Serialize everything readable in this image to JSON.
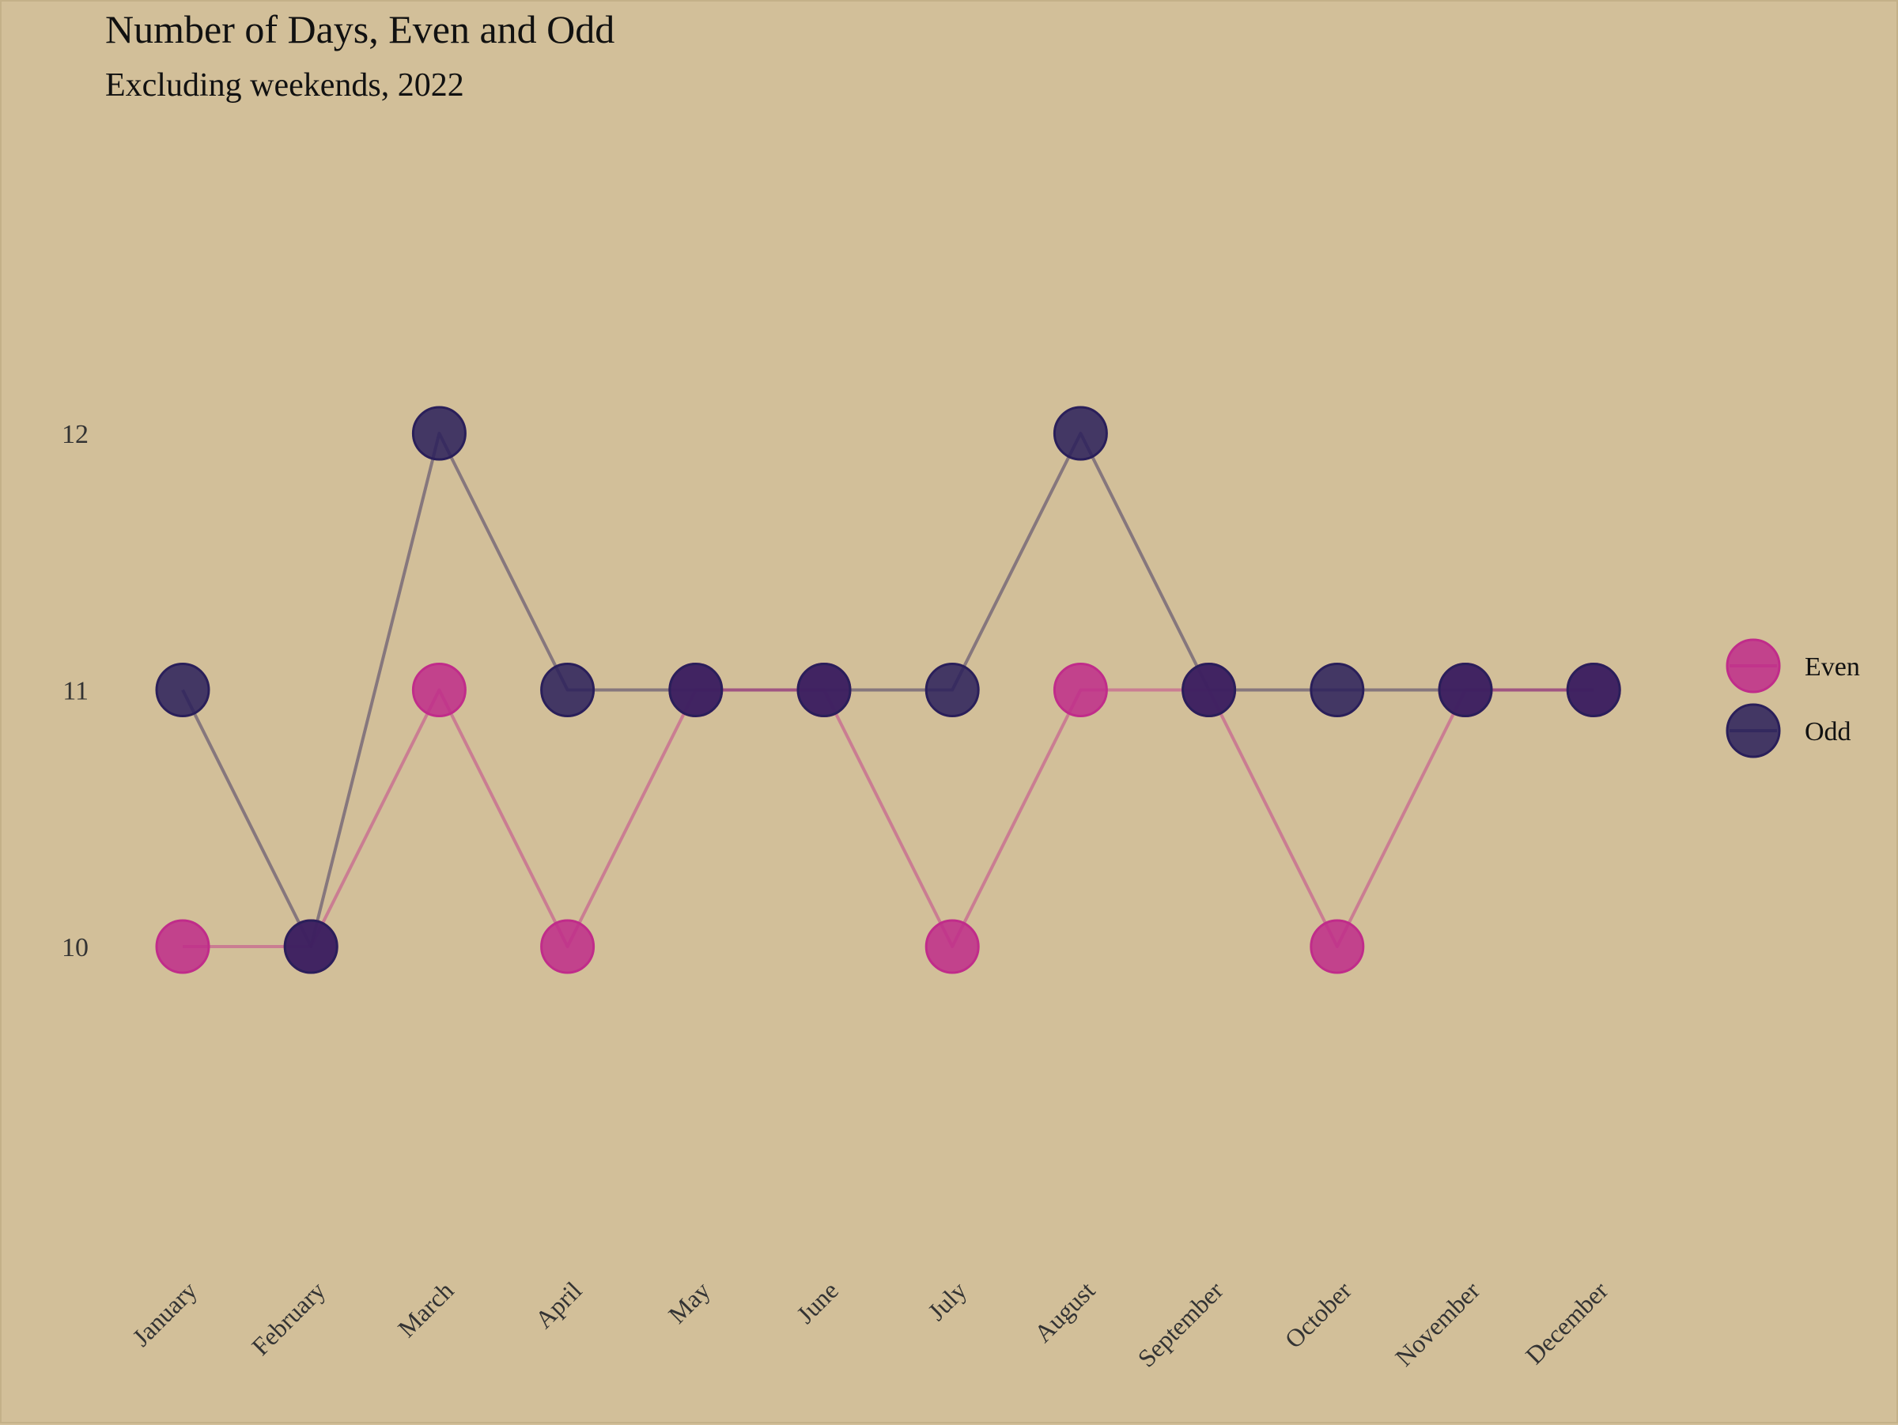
{
  "chart_data": {
    "type": "line",
    "title": "Number of Days, Even and Odd",
    "subtitle": "Excluding weekends, 2022",
    "xlabel": "",
    "ylabel": "",
    "categories": [
      "January",
      "February",
      "March",
      "April",
      "May",
      "June",
      "July",
      "August",
      "September",
      "October",
      "November",
      "December"
    ],
    "y_ticks": [
      10,
      11,
      12
    ],
    "ylim": [
      9,
      13
    ],
    "grid": false,
    "legend_position": "right",
    "series": [
      {
        "name": "Even",
        "color": "#c02c8a",
        "values": [
          10,
          10,
          11,
          10,
          11,
          11,
          10,
          11,
          11,
          10,
          11,
          11
        ]
      },
      {
        "name": "Odd",
        "color": "#2a1f5a",
        "values": [
          11,
          10,
          12,
          11,
          11,
          11,
          11,
          12,
          11,
          11,
          11,
          11
        ]
      }
    ]
  }
}
